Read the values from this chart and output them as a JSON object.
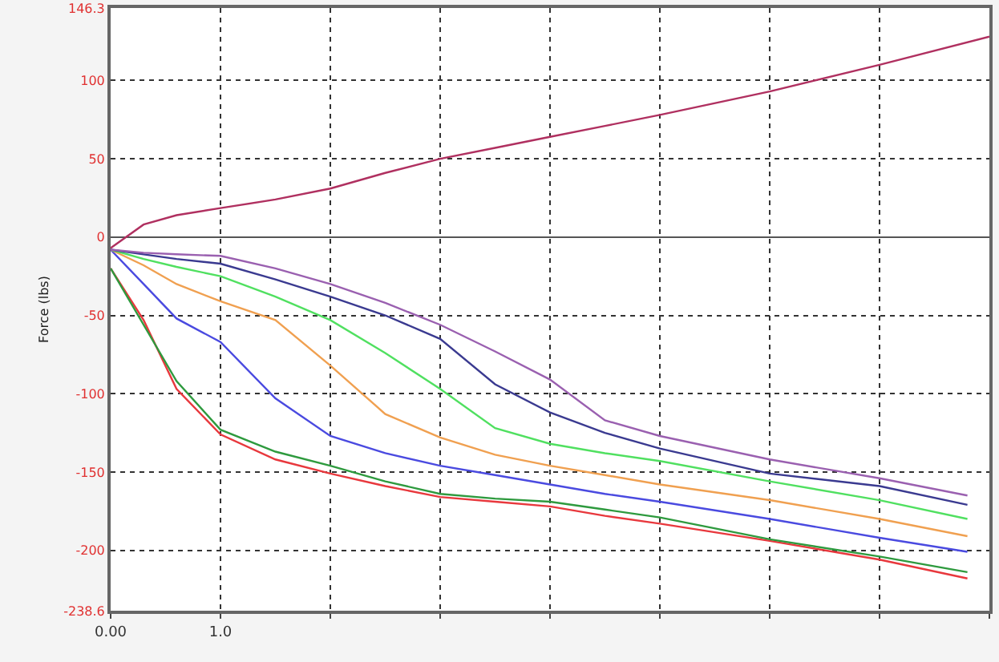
{
  "chart_data": {
    "type": "line",
    "ylabel": "Force (lbs)",
    "x": [
      0,
      0.3,
      0.6,
      1,
      1.5,
      2,
      2.5,
      3,
      3.5,
      4,
      4.5,
      5,
      6,
      7,
      7.8
    ],
    "xlim": [
      0,
      8
    ],
    "xticks": [
      {
        "value": 0,
        "label": "0.00"
      },
      {
        "value": 1,
        "label": "1.0"
      },
      {
        "value": 2,
        "label": null
      },
      {
        "value": 3,
        "label": null
      },
      {
        "value": 4,
        "label": null
      },
      {
        "value": 5,
        "label": null
      },
      {
        "value": 6,
        "label": null
      },
      {
        "value": 7,
        "label": null
      },
      {
        "value": 8,
        "label": null
      }
    ],
    "ylim": [
      -238.6,
      146.3
    ],
    "yticks": [
      146.3,
      100,
      50,
      0,
      -50,
      -100,
      -150,
      -200,
      -238.6
    ],
    "grid": true,
    "line_style": "solid",
    "series": [
      {
        "color": "#b03060",
        "x": [
          0,
          0.3,
          0.6,
          1,
          1.5,
          2,
          2.5,
          3,
          3.5,
          4,
          4.5,
          5,
          6,
          7,
          8
        ],
        "values": [
          -7,
          8,
          14,
          18.5,
          24,
          31,
          41,
          50,
          57,
          64,
          71,
          78,
          93,
          110,
          128
        ]
      },
      {
        "color": "#e8383d",
        "values": [
          -20,
          -53,
          -97,
          -126,
          -142,
          -151,
          -159,
          -166,
          -169,
          -172,
          -178,
          -183,
          -194,
          -206,
          -218
        ]
      },
      {
        "color": "#2e9a3e",
        "values": [
          -20,
          -56,
          -92,
          -123,
          -137,
          -146,
          -156,
          -164,
          -167,
          -169,
          -174,
          -179,
          -193,
          -204,
          -214
        ]
      },
      {
        "color": "#4a4ae0",
        "values": [
          -8,
          -30,
          -52,
          -67,
          -103,
          -127,
          -138,
          -146,
          -152,
          -158,
          -164,
          -169,
          -180,
          -192,
          -201
        ]
      },
      {
        "color": "#f0a050",
        "values": [
          -8,
          -18,
          -30,
          -41,
          -53,
          -82,
          -113,
          -128,
          -139,
          -146,
          -152,
          -158,
          -168,
          -180,
          -191
        ]
      },
      {
        "color": "#50e060",
        "values": [
          -8,
          -14,
          -19,
          -25,
          -38,
          -53,
          -74,
          -97,
          -122,
          -132,
          -138,
          -143,
          -156,
          -168,
          -180
        ]
      },
      {
        "color": "#3a3a90",
        "values": [
          -8,
          -11,
          -14,
          -17,
          -27,
          -38,
          -50,
          -65,
          -94,
          -112,
          -125,
          -135,
          -151,
          -159,
          -171
        ]
      },
      {
        "color": "#9a60b0",
        "values": [
          -8,
          -10,
          -11,
          -12,
          -20,
          -30,
          -42,
          -56,
          -73,
          -91,
          -117,
          -127,
          -142,
          -154,
          -165
        ]
      }
    ]
  }
}
